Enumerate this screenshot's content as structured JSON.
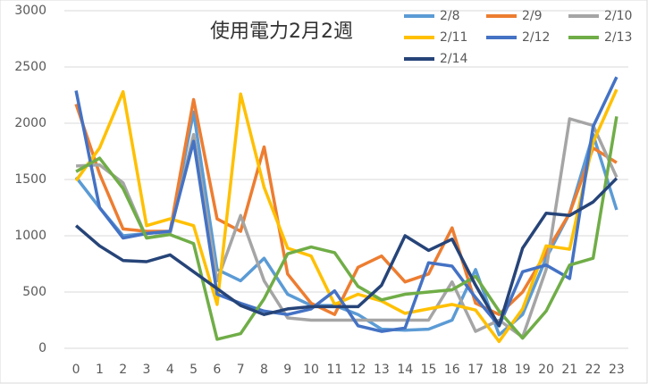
{
  "chart_data": {
    "type": "line",
    "title": "使用電力2月2週",
    "categories": [
      "0",
      "1",
      "2",
      "3",
      "4",
      "5",
      "6",
      "7",
      "8",
      "9",
      "10",
      "11",
      "12",
      "13",
      "14",
      "15",
      "16",
      "17",
      "18",
      "19",
      "20",
      "21",
      "22",
      "23"
    ],
    "series": [
      {
        "name": "2/8",
        "color": "#5B9BD5",
        "values": [
          1520,
          1250,
          1000,
          1020,
          1040,
          2100,
          700,
          600,
          800,
          480,
          380,
          380,
          300,
          170,
          160,
          170,
          250,
          700,
          120,
          300,
          800,
          1200,
          1900,
          1230
        ]
      },
      {
        "name": "2/9",
        "color": "#ED7D31",
        "values": [
          2170,
          1550,
          1060,
          1040,
          1040,
          2210,
          1150,
          1040,
          1790,
          660,
          400,
          300,
          720,
          820,
          590,
          660,
          1070,
          400,
          300,
          500,
          850,
          1200,
          1780,
          1650
        ]
      },
      {
        "name": "2/10",
        "color": "#A5A5A5",
        "values": [
          1620,
          1630,
          1470,
          980,
          1020,
          1900,
          600,
          1180,
          600,
          270,
          250,
          250,
          250,
          250,
          250,
          250,
          590,
          150,
          250,
          100,
          700,
          2040,
          1980,
          1520
        ]
      },
      {
        "name": "2/11",
        "color": "#FFC000",
        "values": [
          1490,
          1780,
          2280,
          1090,
          1150,
          1090,
          390,
          2260,
          1430,
          890,
          820,
          390,
          480,
          420,
          310,
          350,
          390,
          340,
          60,
          350,
          910,
          880,
          1830,
          2300
        ]
      },
      {
        "name": "2/12",
        "color": "#4472C4",
        "values": [
          2290,
          1250,
          980,
          1020,
          1040,
          1840,
          480,
          400,
          330,
          300,
          350,
          510,
          200,
          150,
          180,
          760,
          730,
          450,
          200,
          680,
          740,
          620,
          1970,
          2410
        ]
      },
      {
        "name": "2/13",
        "color": "#70AD47",
        "values": [
          1570,
          1690,
          1420,
          980,
          1010,
          930,
          80,
          130,
          440,
          840,
          900,
          850,
          550,
          430,
          480,
          500,
          520,
          640,
          330,
          90,
          330,
          740,
          800,
          2060
        ]
      },
      {
        "name": "2/14",
        "color": "#264478",
        "values": [
          1090,
          910,
          780,
          770,
          830,
          680,
          530,
          380,
          300,
          350,
          370,
          370,
          370,
          560,
          1000,
          870,
          970,
          560,
          200,
          890,
          1200,
          1180,
          1300,
          1510
        ]
      }
    ],
    "ylim": [
      0,
      3000
    ],
    "yticks": [
      0,
      500,
      1000,
      1500,
      2000,
      2500,
      3000
    ],
    "grid": true
  }
}
